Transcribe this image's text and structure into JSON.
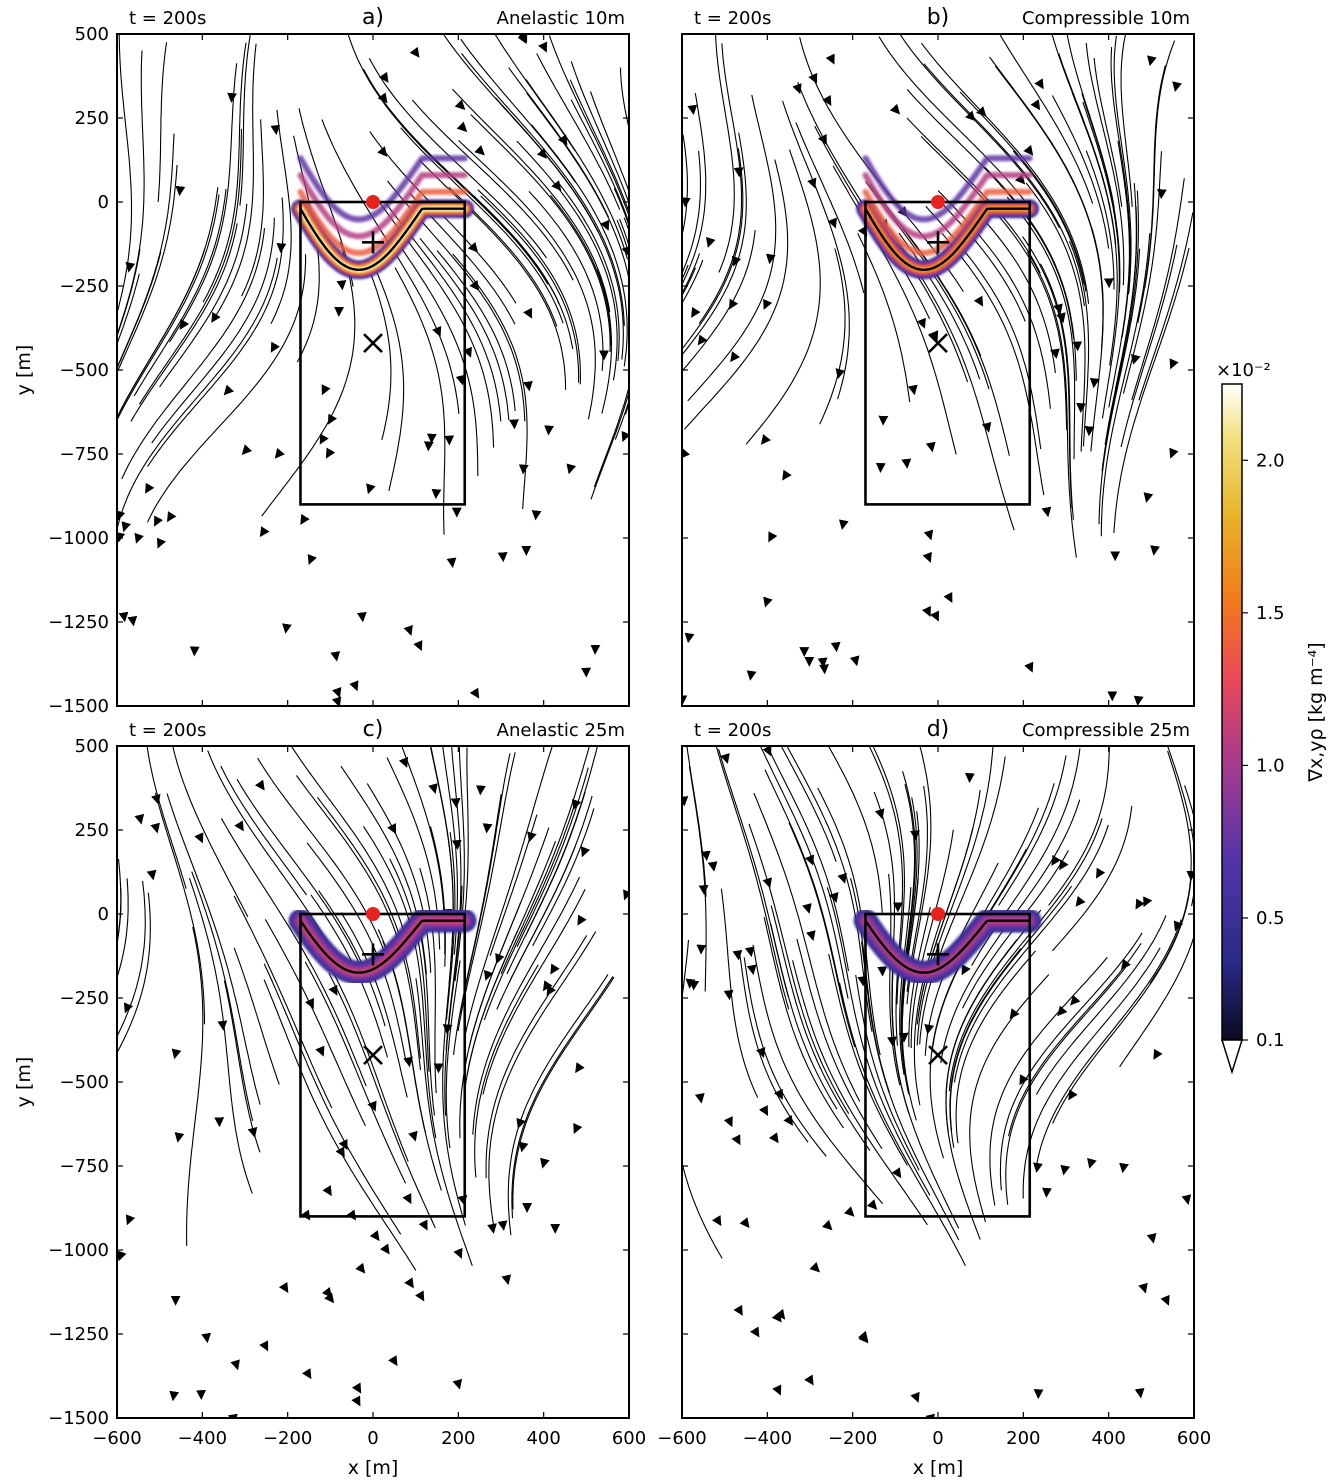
{
  "chart_data": {
    "type": "heatmap",
    "layout": "2x2 panels, shared colorbar",
    "panels": [
      {
        "letter": "a)",
        "time_label": "t = 200s",
        "title": "Anelastic 10m",
        "model": "anelastic",
        "resolution": "10m",
        "plume_extent": "large",
        "max_intensity": 2.2
      },
      {
        "letter": "b)",
        "time_label": "t = 200s",
        "title": "Compressible 10m",
        "model": "compressible",
        "resolution": "10m",
        "plume_extent": "large",
        "max_intensity": 1.6
      },
      {
        "letter": "c)",
        "time_label": "t = 200s",
        "title": "Anelastic 25m",
        "model": "anelastic",
        "resolution": "25m",
        "plume_extent": "medium",
        "max_intensity": 0.9
      },
      {
        "letter": "d)",
        "time_label": "t = 200s",
        "title": "Compressible 25m",
        "model": "compressible",
        "resolution": "25m",
        "plume_extent": "medium",
        "max_intensity": 0.8
      }
    ],
    "xlabel": "x [m]",
    "ylabel": "y [m]",
    "xlim": [
      -600,
      600
    ],
    "ylim": [
      -1500,
      500
    ],
    "xticks": [
      -600,
      -400,
      -200,
      0,
      200,
      400,
      600
    ],
    "yticks": [
      500,
      250,
      0,
      -250,
      -500,
      -750,
      -1000,
      -1250,
      -1500
    ],
    "xtick_labels": [
      "−600",
      "−400",
      "−200",
      "0",
      "200",
      "400",
      "600"
    ],
    "ytick_labels": [
      "500",
      "250",
      "0",
      "−250",
      "−500",
      "−750",
      "−1000",
      "−1250",
      "−1500"
    ],
    "burn_box": {
      "x": [
        -170,
        215
      ],
      "y": [
        -900,
        0
      ]
    },
    "markers": {
      "ignition_point": {
        "x": 0,
        "y": 0,
        "color": "#e8231c"
      },
      "plus": {
        "x": 0,
        "y": -120
      },
      "cross": {
        "x": 0,
        "y": -420
      }
    },
    "colorbar": {
      "label": "∇x,yρ [kg m⁻⁴]",
      "multiplier": "×10⁻²",
      "ticks": [
        0.1,
        0.5,
        1.0,
        1.5,
        2.0
      ],
      "tick_labels": [
        "0.1",
        "0.5",
        "1.0",
        "1.5",
        "2.0"
      ],
      "range": [
        0.1,
        2.25
      ],
      "colormap": "CMRmap",
      "extend": "min"
    },
    "overlay": "wind streamlines (arrows point downward)",
    "grid": false
  }
}
